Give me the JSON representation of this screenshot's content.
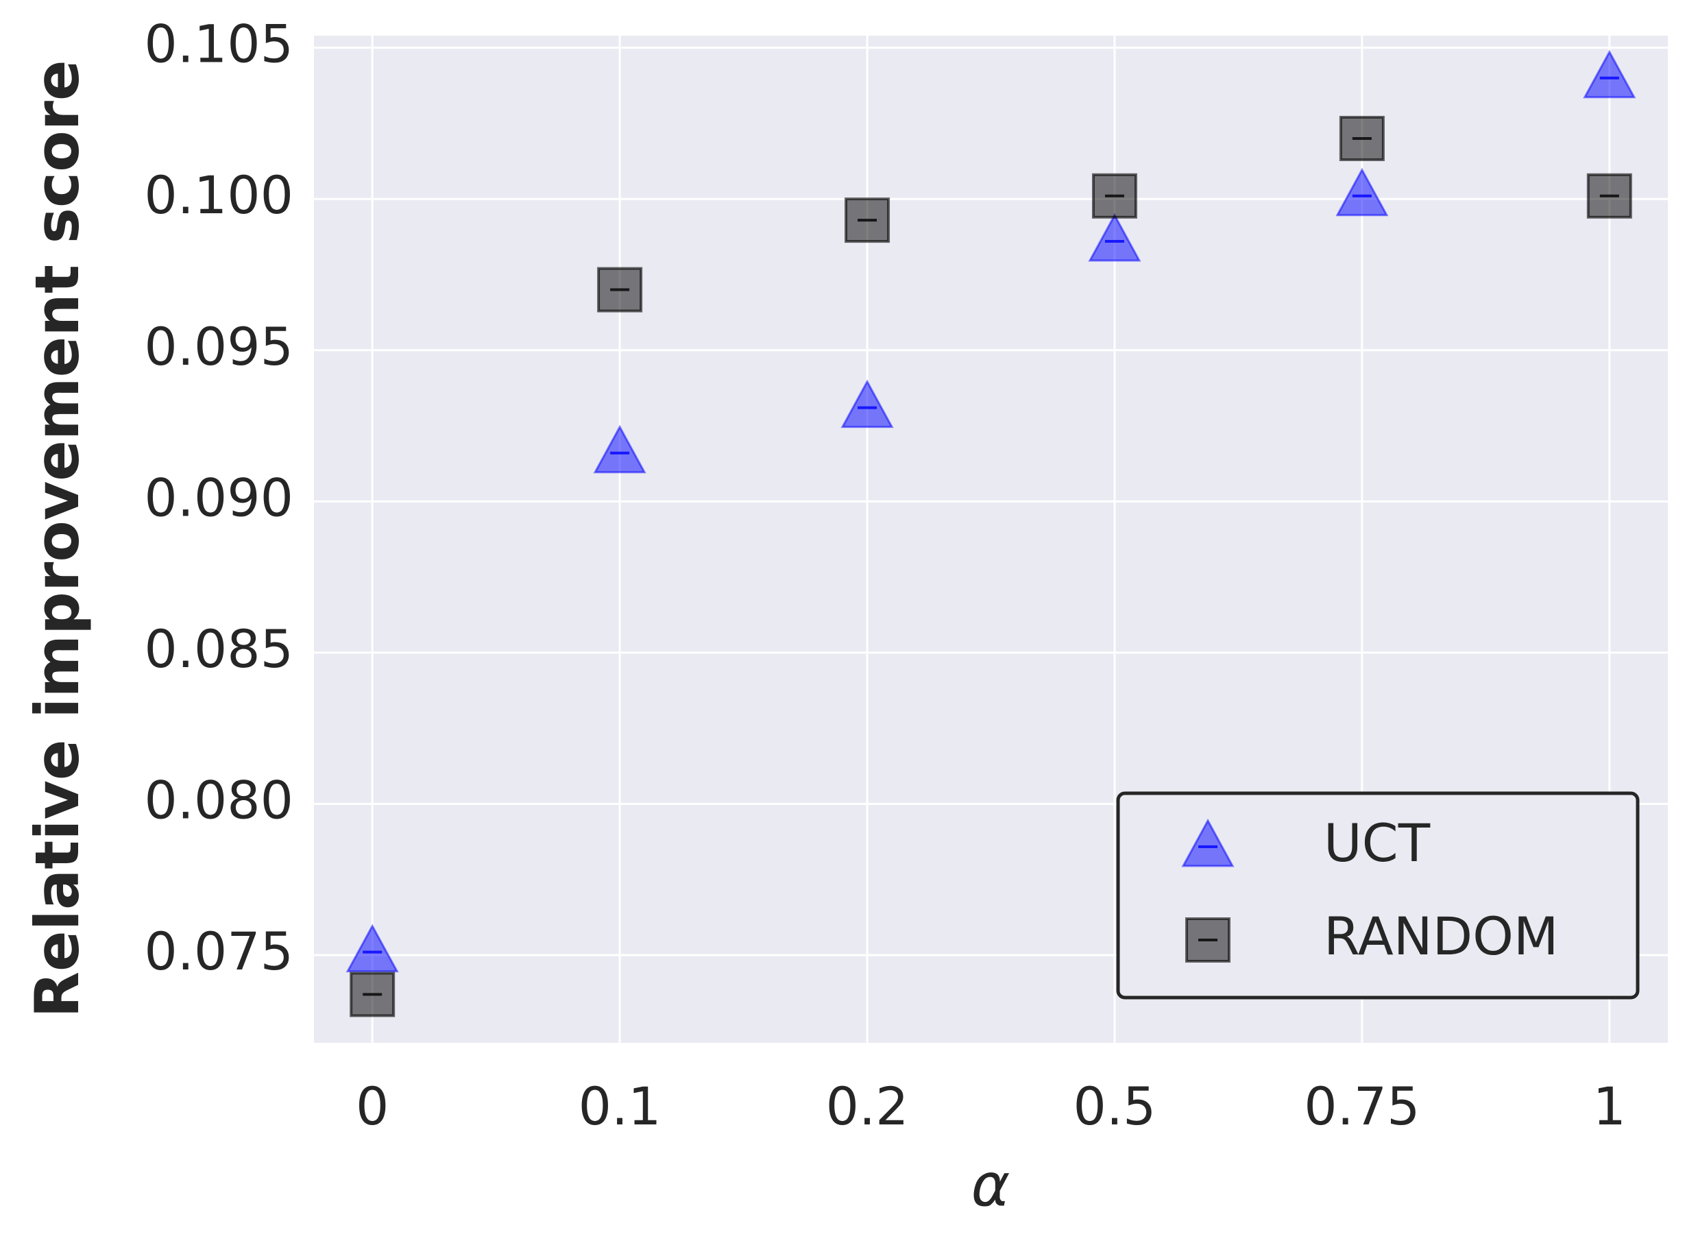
{
  "chart_data": {
    "type": "scatter",
    "x_label": "α",
    "y_label": "Relative improvement score",
    "categories": [
      "0",
      "0.1",
      "0.2",
      "0.5",
      "0.75",
      "1"
    ],
    "series": [
      {
        "name": "UCT",
        "color": "#0000ff",
        "marker": "triangle",
        "values": [
          0.0751,
          0.0916,
          0.0931,
          0.0986,
          0.1001,
          0.104
        ]
      },
      {
        "name": "RANDOM",
        "color": "#000000",
        "marker": "square",
        "values": [
          0.0737,
          0.097,
          0.0993,
          0.1001,
          0.102,
          0.1001
        ]
      }
    ],
    "ylim": [
      0.0721,
      0.1054
    ],
    "yticks": [
      0.075,
      {
        "value": 0.08,
        "label": "0.080"
      },
      0.085,
      {
        "value": 0.09,
        "label": "0.090"
      },
      0.095,
      {
        "value": 0.1,
        "label": "0.100"
      },
      0.105
    ],
    "grid": true,
    "legend": "lower right"
  }
}
